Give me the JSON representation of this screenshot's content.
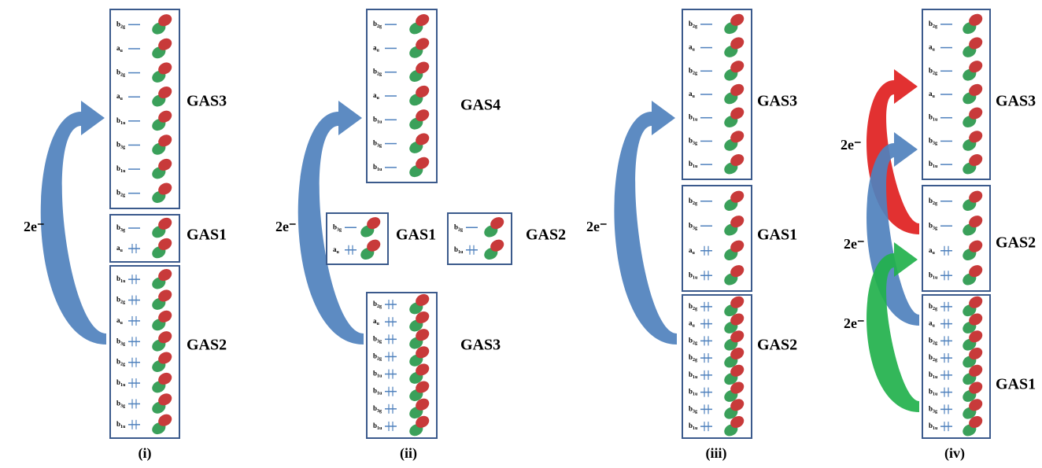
{
  "panels": [
    {
      "label": "(i)",
      "boxes": [
        {
          "gas": "GAS3",
          "orbitals": [
            {
              "sym": "b",
              "sub": "2g",
              "occupied": false
            },
            {
              "sym": "a",
              "sub": "u",
              "occupied": false
            },
            {
              "sym": "b",
              "sub": "2g",
              "occupied": false
            },
            {
              "sym": "a",
              "sub": "u",
              "occupied": false
            },
            {
              "sym": "b",
              "sub": "1u",
              "occupied": false
            },
            {
              "sym": "b",
              "sub": "3g",
              "occupied": false
            },
            {
              "sym": "b",
              "sub": "1u",
              "occupied": false
            },
            {
              "sym": "b",
              "sub": "2g",
              "occupied": false
            }
          ]
        },
        {
          "gas": "GAS1",
          "orbitals": [
            {
              "sym": "b",
              "sub": "3g",
              "occupied": false
            },
            {
              "sym": "a",
              "sub": "u",
              "occupied": true
            }
          ]
        },
        {
          "gas": "GAS2",
          "orbitals": [
            {
              "sym": "b",
              "sub": "1u",
              "occupied": true
            },
            {
              "sym": "b",
              "sub": "2g",
              "occupied": true
            },
            {
              "sym": "a",
              "sub": "u",
              "occupied": true
            },
            {
              "sym": "b",
              "sub": "3g",
              "occupied": true
            },
            {
              "sym": "b",
              "sub": "2g",
              "occupied": true
            },
            {
              "sym": "b",
              "sub": "1u",
              "occupied": true
            },
            {
              "sym": "b",
              "sub": "3g",
              "occupied": true
            },
            {
              "sym": "b",
              "sub": "1u",
              "occupied": true
            }
          ]
        }
      ],
      "arrows": [
        {
          "label": "2e⁻",
          "color": "#4f81bd"
        }
      ]
    },
    {
      "label": "(ii)",
      "boxes": [
        {
          "gas": "GAS4",
          "orbitals": [
            {
              "sym": "b",
              "sub": "2g",
              "occupied": false
            },
            {
              "sym": "a",
              "sub": "u",
              "occupied": false
            },
            {
              "sym": "b",
              "sub": "2g",
              "occupied": false
            },
            {
              "sym": "a",
              "sub": "u",
              "occupied": false
            },
            {
              "sym": "b",
              "sub": "1u",
              "occupied": false
            },
            {
              "sym": "b",
              "sub": "3g",
              "occupied": false
            },
            {
              "sym": "b",
              "sub": "1u",
              "occupied": false
            }
          ]
        },
        {
          "gas": "GAS1",
          "orbitals": [
            {
              "sym": "b",
              "sub": "3g",
              "occupied": false
            },
            {
              "sym": "a",
              "sub": "u",
              "occupied": true
            }
          ]
        },
        {
          "gas": "GAS2",
          "orbitals": [
            {
              "sym": "b",
              "sub": "2g",
              "occupied": false
            },
            {
              "sym": "b",
              "sub": "1u",
              "occupied": true
            }
          ]
        },
        {
          "gas": "GAS3",
          "orbitals": [
            {
              "sym": "b",
              "sub": "2g",
              "occupied": true
            },
            {
              "sym": "a",
              "sub": "u",
              "occupied": true
            },
            {
              "sym": "b",
              "sub": "3g",
              "occupied": true
            },
            {
              "sym": "b",
              "sub": "2g",
              "occupied": true
            },
            {
              "sym": "b",
              "sub": "1u",
              "occupied": true
            },
            {
              "sym": "b",
              "sub": "1u",
              "occupied": true
            },
            {
              "sym": "b",
              "sub": "3g",
              "occupied": true
            },
            {
              "sym": "b",
              "sub": "1u",
              "occupied": true
            }
          ]
        }
      ],
      "arrows": [
        {
          "label": "2e⁻",
          "color": "#4f81bd"
        }
      ]
    },
    {
      "label": "(iii)",
      "boxes": [
        {
          "gas": "GAS3",
          "orbitals": [
            {
              "sym": "b",
              "sub": "2g",
              "occupied": false
            },
            {
              "sym": "a",
              "sub": "u",
              "occupied": false
            },
            {
              "sym": "b",
              "sub": "2g",
              "occupied": false
            },
            {
              "sym": "a",
              "sub": "u",
              "occupied": false
            },
            {
              "sym": "b",
              "sub": "1u",
              "occupied": false
            },
            {
              "sym": "b",
              "sub": "3g",
              "occupied": false
            },
            {
              "sym": "b",
              "sub": "1u",
              "occupied": false
            }
          ]
        },
        {
          "gas": "GAS1",
          "orbitals": [
            {
              "sym": "b",
              "sub": "2g",
              "occupied": false
            },
            {
              "sym": "b",
              "sub": "3g",
              "occupied": false
            },
            {
              "sym": "a",
              "sub": "u",
              "occupied": true
            },
            {
              "sym": "b",
              "sub": "1u",
              "occupied": true
            }
          ]
        },
        {
          "gas": "GAS2",
          "orbitals": [
            {
              "sym": "b",
              "sub": "2g",
              "occupied": true
            },
            {
              "sym": "a",
              "sub": "u",
              "occupied": true
            },
            {
              "sym": "b",
              "sub": "2g",
              "occupied": true
            },
            {
              "sym": "b",
              "sub": "2g",
              "occupied": true
            },
            {
              "sym": "b",
              "sub": "1u",
              "occupied": true
            },
            {
              "sym": "b",
              "sub": "1u",
              "occupied": true
            },
            {
              "sym": "b",
              "sub": "3g",
              "occupied": true
            },
            {
              "sym": "b",
              "sub": "1u",
              "occupied": true
            }
          ]
        }
      ],
      "arrows": [
        {
          "label": "2e⁻",
          "color": "#4f81bd"
        }
      ]
    },
    {
      "label": "(iv)",
      "boxes": [
        {
          "gas": "GAS3",
          "orbitals": [
            {
              "sym": "b",
              "sub": "2g",
              "occupied": false
            },
            {
              "sym": "a",
              "sub": "u",
              "occupied": false
            },
            {
              "sym": "b",
              "sub": "2g",
              "occupied": false
            },
            {
              "sym": "a",
              "sub": "u",
              "occupied": false
            },
            {
              "sym": "b",
              "sub": "1u",
              "occupied": false
            },
            {
              "sym": "b",
              "sub": "3g",
              "occupied": false
            },
            {
              "sym": "b",
              "sub": "1u",
              "occupied": false
            }
          ]
        },
        {
          "gas": "GAS2",
          "orbitals": [
            {
              "sym": "b",
              "sub": "2g",
              "occupied": false
            },
            {
              "sym": "b",
              "sub": "3g",
              "occupied": false
            },
            {
              "sym": "a",
              "sub": "u",
              "occupied": true
            },
            {
              "sym": "b",
              "sub": "1u",
              "occupied": true
            }
          ]
        },
        {
          "gas": "GAS1",
          "orbitals": [
            {
              "sym": "b",
              "sub": "2g",
              "occupied": true
            },
            {
              "sym": "a",
              "sub": "u",
              "occupied": true
            },
            {
              "sym": "b",
              "sub": "2g",
              "occupied": true
            },
            {
              "sym": "b",
              "sub": "2g",
              "occupied": true
            },
            {
              "sym": "b",
              "sub": "1u",
              "occupied": true
            },
            {
              "sym": "b",
              "sub": "1u",
              "occupied": true
            },
            {
              "sym": "b",
              "sub": "3g",
              "occupied": true
            },
            {
              "sym": "b",
              "sub": "1u",
              "occupied": true
            }
          ]
        }
      ],
      "arrows": [
        {
          "label": "2e⁻",
          "color": "#e02020"
        },
        {
          "label": "2e⁻",
          "color": "#4f81bd"
        },
        {
          "label": "2e⁻",
          "color": "#22b14c"
        }
      ]
    }
  ]
}
